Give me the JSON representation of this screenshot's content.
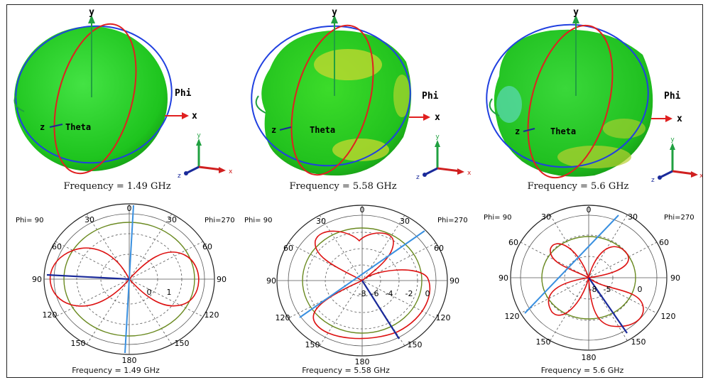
{
  "panels_3d": [
    {
      "frequency_label": "Frequency = 1.49 GHz",
      "y_label": "y",
      "x_label": "x",
      "phi_label": "Phi",
      "theta_label": "Theta",
      "z_label": "z"
    },
    {
      "frequency_label": "Frequency = 5.58 GHz",
      "y_label": "y",
      "x_label": "x",
      "phi_label": "Phi",
      "theta_label": "Theta",
      "z_label": "z"
    },
    {
      "frequency_label": "Frequency = 5.6 GHz",
      "y_label": "y",
      "x_label": "x",
      "phi_label": "Phi",
      "theta_label": "Theta",
      "z_label": "z"
    }
  ],
  "triad": {
    "x": "x",
    "y": "y",
    "z": "z"
  },
  "panels_polar": [
    {
      "frequency_label": "Frequency = 1.49 GHz",
      "phi_left": "Phi= 90",
      "phi_right": "Phi=270",
      "angle_labels": [
        "0",
        "30",
        "60",
        "90",
        "120",
        "150",
        "180",
        "150",
        "120",
        "90",
        "60",
        "30"
      ],
      "radial_labels": [
        "0",
        "1"
      ]
    },
    {
      "frequency_label": "Frequency = 5.58 GHz",
      "phi_left": "Phi= 90",
      "phi_right": "Phi=270",
      "angle_labels": [
        "0",
        "30",
        "60",
        "90",
        "120",
        "150",
        "180",
        "150",
        "120",
        "90",
        "60",
        "30"
      ],
      "radial_labels": [
        "-8",
        "-6",
        "-4",
        "-2",
        "0"
      ]
    },
    {
      "frequency_label": "Frequency = 5.6 GHz",
      "phi_left": "Phi= 90",
      "phi_right": "Phi=270",
      "angle_labels": [
        "0",
        "30",
        "60",
        "90",
        "120",
        "150",
        "180",
        "150",
        "120",
        "90",
        "60",
        "30"
      ],
      "radial_labels": [
        "-8",
        "-5",
        "0"
      ]
    }
  ],
  "colors": {
    "pattern_green": "#22cc22",
    "cut_red": "#e02020",
    "cut_blue": "#2040e0",
    "axis_green": "#20a040",
    "trace_red": "#dd1111",
    "ref_green": "#6a8a20",
    "beam_blue": "#3a90e0",
    "beam_navy": "#1a2a9a"
  }
}
